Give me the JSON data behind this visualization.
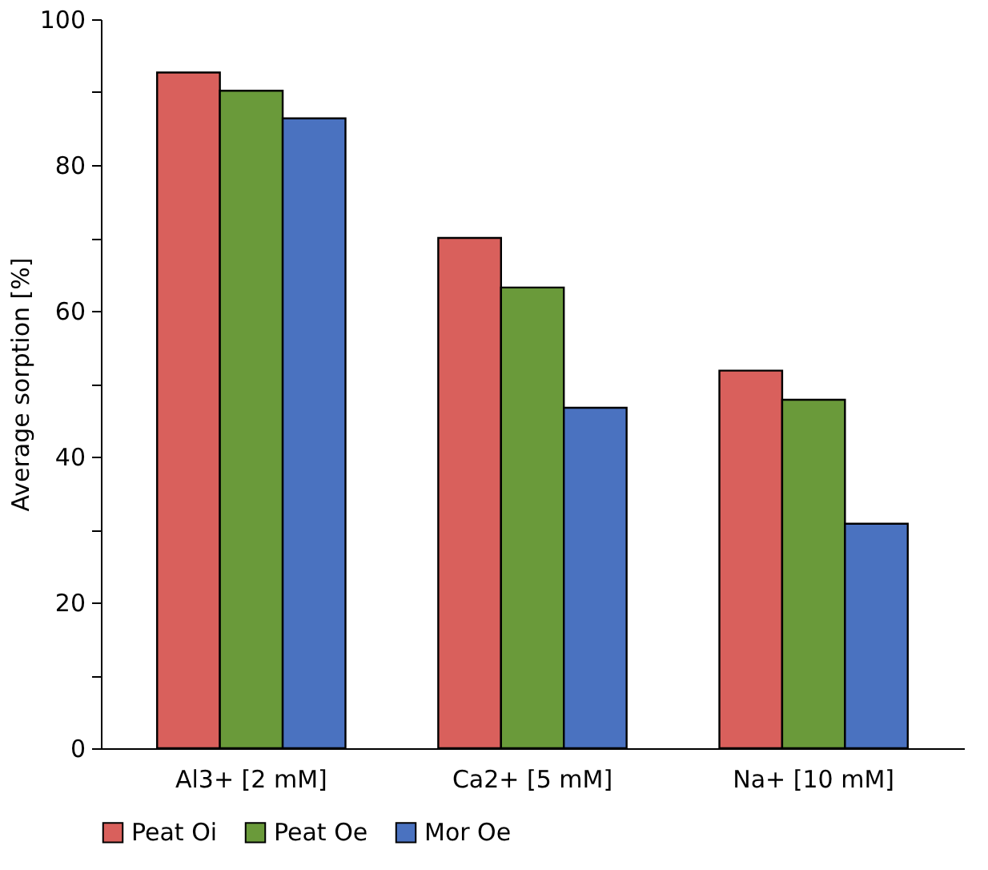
{
  "chart_data": {
    "type": "bar",
    "ylabel": "Average sorption [%]",
    "categories": [
      "Al3+ [2 mM]",
      "Ca2+ [5 mM]",
      "Na+ [10 mM]"
    ],
    "series": [
      {
        "name": "Peat Oi",
        "color": "#d9605c",
        "values": [
          92.7,
          70.0,
          51.8
        ]
      },
      {
        "name": "Peat Oe",
        "color": "#6a9a3a",
        "values": [
          90.2,
          63.2,
          47.8
        ]
      },
      {
        "name": "Mor Oe",
        "color": "#4a72c0",
        "values": [
          86.4,
          46.7,
          30.8
        ]
      }
    ],
    "ylim": [
      0,
      100
    ],
    "yticks": [
      0,
      {
        "value": 10,
        "label": null
      },
      20,
      {
        "value": 30,
        "label": null
      },
      40,
      {
        "value": 50,
        "label": null
      },
      60,
      {
        "value": 70,
        "label": null
      },
      80,
      {
        "value": 90,
        "label": null
      },
      100
    ],
    "grid": false,
    "legend": "bottom"
  }
}
